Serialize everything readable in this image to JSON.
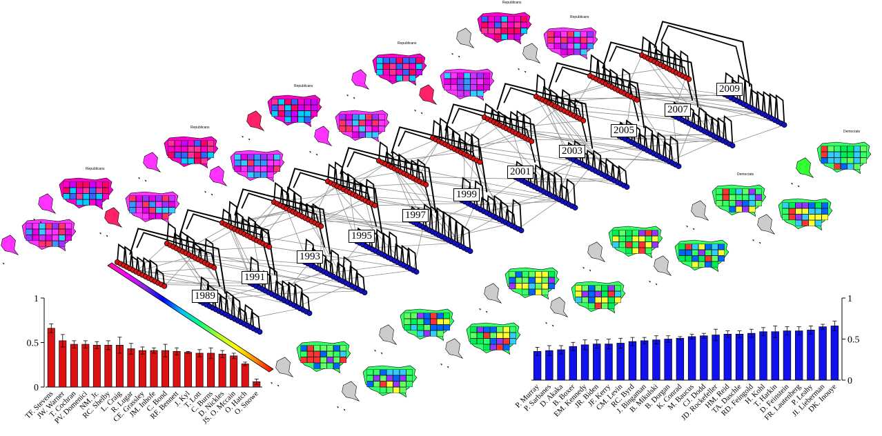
{
  "years": [
    "1989",
    "1991",
    "1993",
    "1995",
    "1997",
    "1999",
    "2001",
    "2003",
    "2005",
    "2007",
    "2009"
  ],
  "map_labels": {
    "republicans": "Republicans",
    "democrats": "Democrats"
  },
  "colors": {
    "republican_node": "#dd1111",
    "democrat_node": "#1111cc",
    "tree_edge": "#000000",
    "cross_edge": "#8c8c8c",
    "alaska_hawaii_gray": "#cccccc"
  },
  "gradient_bar": [
    "#ff1493",
    "#ff00ff",
    "#8a2be2",
    "#0000ff",
    "#00bfff",
    "#00ff7f",
    "#adff2f",
    "#ffff00",
    "#ff8c00",
    "#ff0000"
  ],
  "chart_data": [
    {
      "type": "bar",
      "title": "",
      "ylim": [
        0,
        1
      ],
      "yticks": [
        "0",
        "0.5",
        "1"
      ],
      "color": "#dd1111",
      "categories": [
        "TF. Stevens",
        "JW. Warner",
        "T. Cochran",
        "PV. Domenici",
        "NM. Jr.",
        "RC. Shelby",
        "L. Craig",
        "R. Lugar",
        "CE. Grassley",
        "JM. Inhofe",
        "C. Bond",
        "RF. Bennett",
        "J. Kyl",
        "T. Lott",
        "C. Burns",
        "D. Nickles",
        "JS. O. Mccain",
        "O. Hatch",
        "O. Snowe"
      ],
      "values": [
        0.66,
        0.52,
        0.48,
        0.48,
        0.47,
        0.47,
        0.47,
        0.43,
        0.41,
        0.41,
        0.41,
        0.4,
        0.39,
        0.38,
        0.38,
        0.37,
        0.35,
        0.26,
        0.06
      ],
      "errors": [
        0.05,
        0.07,
        0.04,
        0.04,
        0.04,
        0.05,
        0.09,
        0.06,
        0.04,
        0.03,
        0.07,
        0.04,
        0.01,
        0.04,
        0.06,
        0.04,
        0.03,
        0.02,
        0.03
      ],
      "axis_side": "left"
    },
    {
      "type": "bar",
      "title": "",
      "ylim": [
        0,
        1
      ],
      "yticks": [
        "0",
        "0.5",
        "1"
      ],
      "color": "#1111ee",
      "categories": [
        "P. Murray",
        "P. Sarbanes",
        "D. Akaka",
        "B. Boxer",
        "EM. Kennedy",
        "JR. Biden",
        "JF. Kerry",
        "CM. Levin",
        "RC. Byrd",
        "J. Bingaman",
        "B. Mikulski",
        "B. Dorgan",
        "K. Conrad",
        "M. Baucus",
        "CJ. Dodd",
        "JD. Rockefeller",
        "HM. Reid",
        "TA. Daschle",
        "RD. Feingold",
        "H. Kohl",
        "T. Harkin",
        "D. Feinstein",
        "FR. Lautenberg",
        "P. Leahy",
        "JI. Lieberman",
        "DK. Inouye"
      ],
      "values": [
        0.35,
        0.36,
        0.37,
        0.41,
        0.43,
        0.44,
        0.44,
        0.45,
        0.47,
        0.48,
        0.49,
        0.5,
        0.51,
        0.53,
        0.54,
        0.55,
        0.56,
        0.56,
        0.57,
        0.59,
        0.59,
        0.6,
        0.6,
        0.61,
        0.65,
        0.66
      ],
      "errors": [
        0.05,
        0.06,
        0.05,
        0.05,
        0.06,
        0.05,
        0.06,
        0.06,
        0.05,
        0.04,
        0.05,
        0.04,
        0.02,
        0.03,
        0.03,
        0.07,
        0.04,
        0.04,
        0.05,
        0.05,
        0.07,
        0.05,
        0.05,
        0.05,
        0.03,
        0.06
      ],
      "axis_side": "right"
    }
  ]
}
